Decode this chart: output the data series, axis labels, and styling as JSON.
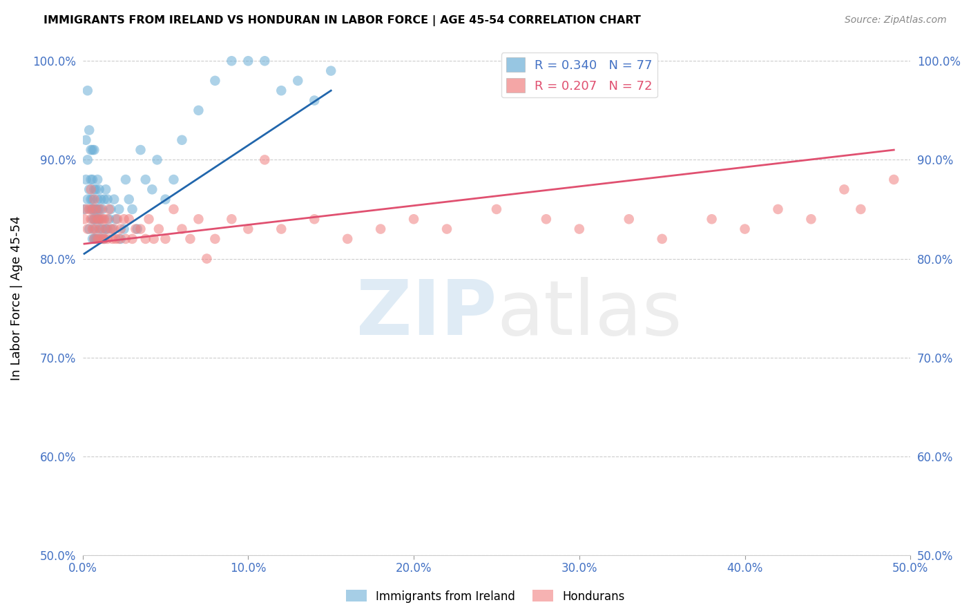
{
  "title": "IMMIGRANTS FROM IRELAND VS HONDURAN IN LABOR FORCE | AGE 45-54 CORRELATION CHART",
  "source": "Source: ZipAtlas.com",
  "ylabel": "In Labor Force | Age 45-54",
  "xlim": [
    0.0,
    0.5
  ],
  "ylim": [
    0.5,
    1.02
  ],
  "yticks": [
    0.5,
    0.6,
    0.7,
    0.8,
    0.9,
    1.0
  ],
  "ytick_labels": [
    "50.0%",
    "60.0%",
    "70.0%",
    "80.0%",
    "90.0%",
    "100.0%"
  ],
  "xticks": [
    0.0,
    0.1,
    0.2,
    0.3,
    0.4,
    0.5
  ],
  "xtick_labels": [
    "0.0%",
    "10.0%",
    "20.0%",
    "30.0%",
    "40.0%",
    "50.0%"
  ],
  "ireland_R": 0.34,
  "ireland_N": 77,
  "honduran_R": 0.207,
  "honduran_N": 72,
  "ireland_color": "#6baed6",
  "honduran_color": "#f08080",
  "ireland_line_color": "#2166ac",
  "honduran_line_color": "#e05070",
  "ireland_x": [
    0.001,
    0.002,
    0.002,
    0.003,
    0.003,
    0.003,
    0.004,
    0.004,
    0.004,
    0.005,
    0.005,
    0.005,
    0.005,
    0.006,
    0.006,
    0.006,
    0.006,
    0.006,
    0.006,
    0.007,
    0.007,
    0.007,
    0.007,
    0.007,
    0.007,
    0.008,
    0.008,
    0.008,
    0.008,
    0.009,
    0.009,
    0.009,
    0.009,
    0.009,
    0.01,
    0.01,
    0.01,
    0.01,
    0.011,
    0.011,
    0.011,
    0.012,
    0.012,
    0.013,
    0.013,
    0.014,
    0.014,
    0.015,
    0.015,
    0.016,
    0.017,
    0.018,
    0.019,
    0.02,
    0.022,
    0.023,
    0.025,
    0.026,
    0.028,
    0.03,
    0.033,
    0.035,
    0.038,
    0.042,
    0.045,
    0.05,
    0.055,
    0.06,
    0.07,
    0.08,
    0.09,
    0.1,
    0.11,
    0.12,
    0.13,
    0.14,
    0.15
  ],
  "ireland_y": [
    0.85,
    0.92,
    0.88,
    0.86,
    0.9,
    0.97,
    0.83,
    0.87,
    0.93,
    0.85,
    0.86,
    0.88,
    0.91,
    0.82,
    0.84,
    0.85,
    0.86,
    0.88,
    0.91,
    0.82,
    0.83,
    0.84,
    0.85,
    0.87,
    0.91,
    0.82,
    0.84,
    0.85,
    0.87,
    0.82,
    0.84,
    0.85,
    0.86,
    0.88,
    0.83,
    0.84,
    0.85,
    0.87,
    0.82,
    0.84,
    0.86,
    0.83,
    0.85,
    0.82,
    0.86,
    0.83,
    0.87,
    0.83,
    0.86,
    0.84,
    0.85,
    0.83,
    0.86,
    0.84,
    0.85,
    0.82,
    0.83,
    0.88,
    0.86,
    0.85,
    0.83,
    0.91,
    0.88,
    0.87,
    0.9,
    0.86,
    0.88,
    0.92,
    0.95,
    0.98,
    1.0,
    1.0,
    1.0,
    0.97,
    0.98,
    0.96,
    0.99
  ],
  "honduran_x": [
    0.001,
    0.002,
    0.003,
    0.004,
    0.005,
    0.005,
    0.006,
    0.006,
    0.007,
    0.007,
    0.007,
    0.008,
    0.008,
    0.009,
    0.009,
    0.01,
    0.01,
    0.011,
    0.011,
    0.012,
    0.012,
    0.013,
    0.013,
    0.014,
    0.015,
    0.015,
    0.016,
    0.017,
    0.018,
    0.019,
    0.02,
    0.021,
    0.022,
    0.023,
    0.025,
    0.026,
    0.028,
    0.03,
    0.032,
    0.035,
    0.038,
    0.04,
    0.043,
    0.046,
    0.05,
    0.055,
    0.06,
    0.065,
    0.07,
    0.075,
    0.08,
    0.09,
    0.1,
    0.11,
    0.12,
    0.14,
    0.16,
    0.18,
    0.2,
    0.22,
    0.25,
    0.28,
    0.3,
    0.33,
    0.35,
    0.38,
    0.4,
    0.42,
    0.44,
    0.46,
    0.47,
    0.49
  ],
  "honduran_y": [
    0.84,
    0.85,
    0.83,
    0.85,
    0.84,
    0.87,
    0.83,
    0.85,
    0.82,
    0.84,
    0.86,
    0.83,
    0.85,
    0.82,
    0.84,
    0.82,
    0.84,
    0.83,
    0.85,
    0.82,
    0.84,
    0.82,
    0.84,
    0.83,
    0.82,
    0.84,
    0.85,
    0.83,
    0.82,
    0.83,
    0.82,
    0.84,
    0.82,
    0.83,
    0.84,
    0.82,
    0.84,
    0.82,
    0.83,
    0.83,
    0.82,
    0.84,
    0.82,
    0.83,
    0.82,
    0.85,
    0.83,
    0.82,
    0.84,
    0.8,
    0.82,
    0.84,
    0.83,
    0.9,
    0.83,
    0.84,
    0.82,
    0.83,
    0.84,
    0.83,
    0.85,
    0.84,
    0.83,
    0.84,
    0.82,
    0.84,
    0.83,
    0.85,
    0.84,
    0.87,
    0.85,
    0.88
  ],
  "ireland_trendline_x": [
    0.001,
    0.15
  ],
  "ireland_trendline_y": [
    0.805,
    0.97
  ],
  "honduran_trendline_x": [
    0.001,
    0.49
  ],
  "honduran_trendline_y": [
    0.815,
    0.91
  ]
}
